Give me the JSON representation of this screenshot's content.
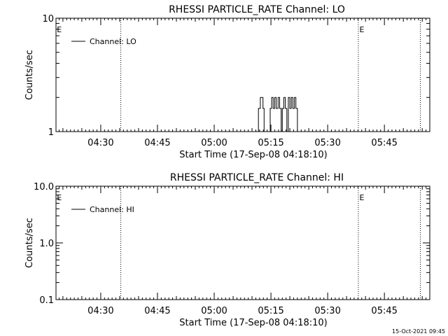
{
  "chart_data": [
    {
      "type": "line",
      "title": "RHESSI PARTICLE_RATE Channel: LO",
      "xlabel": "Start Time (17-Sep-08 04:18:10)",
      "ylabel": "Counts/sec",
      "y_scale": "log",
      "x_unit": "minutes since 04:00 UT",
      "xlim": [
        18.17,
        117.0
      ],
      "ylim": [
        1,
        10
      ],
      "x_tick_values": [
        30,
        45,
        60,
        75,
        90,
        105
      ],
      "x_tick_labels": [
        "04:30",
        "04:45",
        "05:00",
        "05:15",
        "05:30",
        "05:45"
      ],
      "y_tick_values": [
        1,
        10
      ],
      "y_tick_labels": [
        "1",
        "10"
      ],
      "legend": {
        "position": "top-left",
        "entries": [
          "Channel: LO"
        ]
      },
      "vertical_markers": [
        {
          "x": 35.3,
          "label": ""
        },
        {
          "x": 98.1,
          "label": ""
        },
        {
          "x": 114.5,
          "label": ""
        }
      ],
      "edge_labels": [
        {
          "x": 18.4,
          "label": "E"
        },
        {
          "x": 98.4,
          "label": "E"
        }
      ],
      "series": [
        {
          "name": "Channel: LO",
          "x": [
            71.0,
            71.7,
            71.7,
            72.2,
            72.2,
            72.9,
            72.9,
            73.2,
            73.2,
            74.8,
            74.8,
            75.2,
            75.2,
            75.6,
            75.6,
            76.0,
            76.0,
            76.4,
            76.4,
            76.9,
            76.9,
            77.3,
            77.3,
            77.7,
            77.7,
            78.0,
            78.0,
            78.4,
            78.4,
            78.8,
            78.8,
            79.2,
            79.2,
            79.6,
            79.6,
            80.0,
            80.0,
            80.4,
            80.4,
            80.8,
            80.8,
            81.2,
            81.2,
            81.6,
            81.6,
            82.0,
            82.0,
            82.5
          ],
          "y": [
            1,
            1,
            1.6,
            1.6,
            2,
            2,
            1.6,
            1.6,
            1,
            1,
            1.6,
            1.6,
            2,
            2,
            1.6,
            1.6,
            2,
            2,
            1.6,
            1.6,
            2,
            2,
            1.6,
            1.6,
            1,
            1,
            1.6,
            1.6,
            2,
            2,
            1.6,
            1.6,
            1,
            1,
            2,
            2,
            1.6,
            1.6,
            2,
            2,
            1.6,
            1.6,
            2,
            2,
            1.6,
            1.6,
            1,
            1
          ]
        }
      ]
    },
    {
      "type": "line",
      "title": "RHESSI PARTICLE_RATE Channel: HI",
      "xlabel": "Start Time (17-Sep-08 04:18:10)",
      "ylabel": "Counts/sec",
      "y_scale": "log",
      "x_unit": "minutes since 04:00 UT",
      "xlim": [
        18.17,
        117.0
      ],
      "ylim": [
        0.1,
        10
      ],
      "x_tick_values": [
        30,
        45,
        60,
        75,
        90,
        105
      ],
      "x_tick_labels": [
        "04:30",
        "04:45",
        "05:00",
        "05:15",
        "05:30",
        "05:45"
      ],
      "y_tick_values": [
        0.1,
        1,
        10
      ],
      "y_tick_labels": [
        "0.1",
        "1.0",
        "10.0"
      ],
      "legend": {
        "position": "top-left",
        "entries": [
          "Channel: HI"
        ]
      },
      "vertical_markers": [
        {
          "x": 35.3,
          "label": ""
        },
        {
          "x": 98.1,
          "label": ""
        },
        {
          "x": 114.5,
          "label": ""
        }
      ],
      "edge_labels": [
        {
          "x": 18.4,
          "label": "E"
        },
        {
          "x": 98.4,
          "label": "E"
        }
      ],
      "series": [
        {
          "name": "Channel: HI",
          "x": [],
          "y": []
        }
      ]
    }
  ],
  "footer": {
    "timestamp": "15-Oct-2021 09:45"
  }
}
